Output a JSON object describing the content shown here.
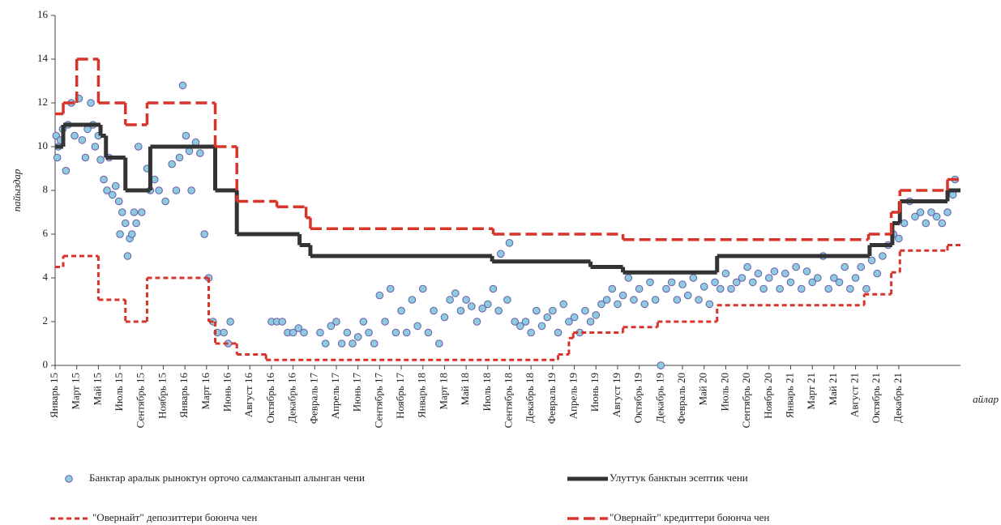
{
  "chart_data": {
    "type": "line",
    "ylabel": "пайыздар",
    "xlabel": "айлар",
    "xlim": [
      0,
      83.7
    ],
    "ylim": [
      0,
      16
    ],
    "yticks": [
      0,
      2,
      4,
      6,
      8,
      10,
      12,
      14,
      16
    ],
    "xticks": [
      {
        "value": 0,
        "label": "Январь 15"
      },
      {
        "value": 2,
        "label": "Март 15"
      },
      {
        "value": 4,
        "label": "Май 15"
      },
      {
        "value": 6,
        "label": "Июль 15"
      },
      {
        "value": 8,
        "label": "Сентябрь 15"
      },
      {
        "value": 10,
        "label": "Ноябрь 15"
      },
      {
        "value": 12,
        "label": "Январь 16"
      },
      {
        "value": 14,
        "label": "Март 16"
      },
      {
        "value": 16,
        "label": "Июнь 16"
      },
      {
        "value": 18,
        "label": "Август 16"
      },
      {
        "value": 20,
        "label": "Октябрь 16"
      },
      {
        "value": 22,
        "label": "Декабрь 16"
      },
      {
        "value": 24,
        "label": "Февраль 17"
      },
      {
        "value": 26,
        "label": "Апрель 17"
      },
      {
        "value": 28,
        "label": "Июнь 17"
      },
      {
        "value": 30,
        "label": "Сентябрь 17"
      },
      {
        "value": 32,
        "label": "Ноябрь 17"
      },
      {
        "value": 34,
        "label": "Январь 18"
      },
      {
        "value": 36,
        "label": "Март 18"
      },
      {
        "value": 38,
        "label": "Май 18"
      },
      {
        "value": 40,
        "label": "Июль 18"
      },
      {
        "value": 42,
        "label": "Сентябрь 18"
      },
      {
        "value": 44,
        "label": "Декабрь 18"
      },
      {
        "value": 46,
        "label": "Февраль 19"
      },
      {
        "value": 48,
        "label": "Апрель 19"
      },
      {
        "value": 50,
        "label": "Июнь 19"
      },
      {
        "value": 52,
        "label": "Август 19"
      },
      {
        "value": 54,
        "label": "Октябрь 19"
      },
      {
        "value": 56,
        "label": "Декабрь 19"
      },
      {
        "value": 58,
        "label": "Февраль 20"
      },
      {
        "value": 60,
        "label": "Май 20"
      },
      {
        "value": 62,
        "label": "Июль 20"
      },
      {
        "value": 64,
        "label": "Сентябрь 20"
      },
      {
        "value": 66,
        "label": "Ноябрь 20"
      },
      {
        "value": 68,
        "label": "Январь 21"
      },
      {
        "value": 70,
        "label": "Март 21"
      },
      {
        "value": 72,
        "label": "Май 21"
      },
      {
        "value": 74,
        "label": "Август 21"
      },
      {
        "value": 76,
        "label": "Октябрь 21"
      },
      {
        "value": 78,
        "label": "Декабрь 21"
      }
    ],
    "series": [
      {
        "name": "Банктар аралык рыноктун орточо салмактанып алынган чени",
        "kind": "scatter",
        "color": "#8ccbe0",
        "edge": "#6b5ca5",
        "x": [
          0.1,
          0.2,
          0.3,
          0.5,
          0.7,
          1,
          1.2,
          1.5,
          1.8,
          2.2,
          2.5,
          2.8,
          3,
          3.3,
          3.5,
          3.7,
          4,
          4.2,
          4.5,
          4.8,
          5,
          5.3,
          5.6,
          5.9,
          6,
          6.2,
          6.5,
          6.7,
          6.9,
          7.1,
          7.3,
          7.5,
          7.7,
          8,
          8.5,
          8.8,
          9.2,
          9.6,
          10.2,
          10.8,
          11.2,
          11.5,
          11.8,
          12.1,
          12.4,
          12.6,
          13,
          13.4,
          13.8,
          14.2,
          14.6,
          15,
          15.6,
          16,
          16.2,
          20,
          20.5,
          21,
          21.5,
          22,
          22.5,
          23,
          24.5,
          25,
          25.5,
          26,
          26.5,
          27,
          27.5,
          28,
          28.5,
          29,
          29.5,
          30,
          30.5,
          31,
          31.5,
          32,
          32.5,
          33,
          33.5,
          34,
          34.5,
          35,
          35.5,
          36,
          36.5,
          37,
          37.5,
          38,
          38.5,
          39,
          39.5,
          40,
          40.5,
          41,
          41.2,
          41.8,
          42,
          42.5,
          43,
          43.5,
          44,
          44.5,
          45,
          45.5,
          46,
          46.5,
          47,
          47.5,
          48,
          48.5,
          49,
          49.5,
          50,
          50.5,
          51,
          51.5,
          52,
          52.5,
          53,
          53.5,
          54,
          54.5,
          55,
          55.5,
          56,
          56.5,
          57,
          57.5,
          58,
          58.5,
          59,
          59.5,
          60,
          60.5,
          61,
          61.5,
          62,
          62.5,
          63,
          63.5,
          64,
          64.5,
          65,
          65.5,
          66,
          66.5,
          67,
          67.5,
          68,
          68.5,
          69,
          69.5,
          70,
          70.5,
          71,
          71.5,
          72,
          72.5,
          73,
          73.5,
          74,
          74.5,
          75,
          75.5,
          76,
          76.5,
          77,
          77.5,
          78,
          78.5,
          79,
          79.5,
          80,
          80.5,
          81,
          81.5,
          82,
          82.5,
          83,
          83.2
        ],
        "values": [
          10.5,
          9.5,
          10,
          10.3,
          10.8,
          8.9,
          11,
          12,
          10.5,
          12.2,
          10.3,
          9.5,
          10.8,
          12,
          11,
          10,
          10.5,
          9.4,
          8.5,
          8,
          9.5,
          7.8,
          8.2,
          7.5,
          6,
          7,
          6.5,
          5,
          5.8,
          6,
          7,
          6.5,
          10,
          7,
          9,
          8,
          8.5,
          8,
          7.5,
          9.2,
          8,
          9.5,
          12.8,
          10.5,
          9.8,
          8,
          10.2,
          9.7,
          6,
          4,
          2,
          1.5,
          1.5,
          1,
          2,
          2,
          2,
          2,
          1.5,
          1.5,
          1.7,
          1.5,
          1.5,
          1,
          1.8,
          2,
          1,
          1.5,
          1,
          1.3,
          2,
          1.5,
          1,
          3.2,
          2,
          3.5,
          1.5,
          2.5,
          1.5,
          3,
          1.8,
          3.5,
          1.5,
          2.5,
          1,
          2.2,
          3,
          3.3,
          2.5,
          3,
          2.7,
          2,
          2.6,
          2.8,
          3.5,
          2.5,
          5.1,
          3,
          5.6,
          2,
          1.8,
          2,
          1.5,
          2.5,
          1.8,
          2.2,
          2.5,
          1.5,
          2.8,
          2,
          2.2,
          1.5,
          2.5,
          2,
          2.3,
          2.8,
          3,
          3.5,
          2.8,
          3.2,
          4,
          3,
          3.5,
          2.8,
          3.8,
          3,
          0,
          3.5,
          3.8,
          3,
          3.7,
          3.2,
          4,
          3,
          3.6,
          2.8,
          3.8,
          3.5,
          4.2,
          3.5,
          3.8,
          4,
          4.5,
          3.8,
          4.2,
          3.5,
          4,
          4.3,
          3.5,
          4.2,
          3.8,
          4.5,
          3.5,
          4.3,
          3.8,
          4,
          5,
          3.5,
          4,
          3.8,
          4.5,
          3.5,
          4,
          4.5,
          3.5,
          4.8,
          4.2,
          5,
          5.5,
          6,
          5.8,
          6.5,
          7.5,
          6.8,
          7,
          6.5,
          7,
          6.8,
          6.5,
          7,
          7.8,
          8.5
        ]
      },
      {
        "name": "Улуттук банктын эсептик чени",
        "kind": "step",
        "style": "solid",
        "color": "#333333",
        "x": [
          0,
          0.75,
          4.2,
          4.7,
          6.5,
          8.8,
          14.8,
          16.8,
          22.6,
          23.6,
          40.4,
          49.5,
          52.5,
          61.2,
          75.3,
          77.4,
          78.1,
          82.5,
          83.7
        ],
        "values": [
          10,
          11,
          10.5,
          9.5,
          8,
          10,
          8,
          6,
          5.5,
          5,
          4.75,
          4.5,
          4.25,
          5,
          5.5,
          6.5,
          7.5,
          8,
          8
        ]
      },
      {
        "name": "\"Овернайт\" депозиттери боюнча чен",
        "kind": "step",
        "style": "short",
        "color": "#d9342b",
        "x": [
          0,
          0.75,
          4,
          6.5,
          8.5,
          14.2,
          14.8,
          16.8,
          19.5,
          46.5,
          47.5,
          47.9,
          52.5,
          55.7,
          61.2,
          74.8,
          77.3,
          78.1,
          82.5,
          83.7
        ],
        "values": [
          4.5,
          5,
          3,
          2,
          4,
          2,
          1,
          0.5,
          0.25,
          0.5,
          1.25,
          1.5,
          1.75,
          2,
          2.75,
          3.25,
          4.25,
          5.25,
          5.5,
          5.5
        ]
      },
      {
        "name": "\"Овернайт\" кредиттери боюнча чен",
        "kind": "step",
        "style": "long",
        "color": "#d9342b",
        "x": [
          0,
          0.75,
          2,
          4,
          6.5,
          8.5,
          14.8,
          16.8,
          20.5,
          23.2,
          23.6,
          40.5,
          52.5,
          75.2,
          77.3,
          78.1,
          82.5,
          83.7
        ],
        "values": [
          11.5,
          12,
          14,
          12,
          11,
          12,
          10,
          7.5,
          7.25,
          6.75,
          6.25,
          6,
          5.75,
          6,
          7,
          8,
          8.5,
          8.5
        ]
      }
    ]
  }
}
